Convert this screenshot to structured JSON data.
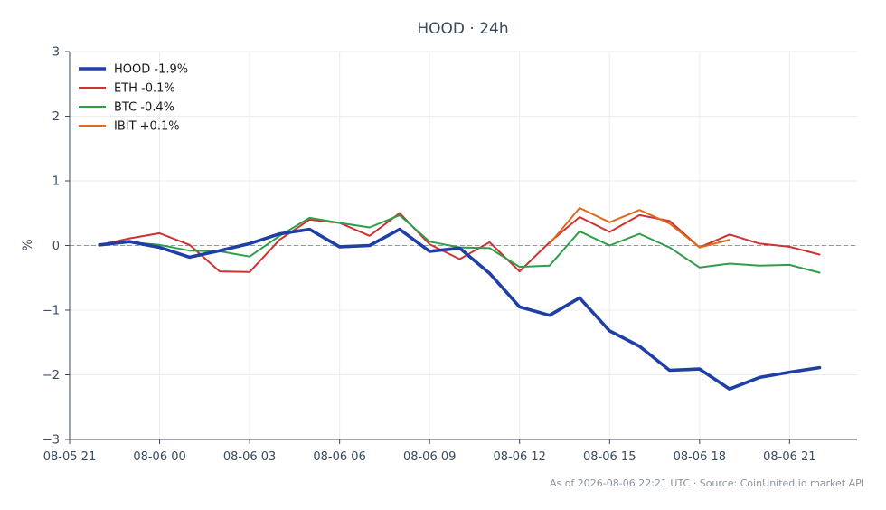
{
  "chart_data": {
    "type": "line",
    "title": "HOOD · 24h",
    "ylabel": "%",
    "xlabel": "",
    "ylim": [
      -3,
      3
    ],
    "yticks": [
      -3,
      -2,
      -1,
      0,
      1,
      2,
      3
    ],
    "ytick_labels": [
      "−3",
      "−2",
      "−1",
      "0",
      "1",
      "2",
      "3"
    ],
    "xlim": [
      "2026-08-05 21:00",
      "2026-08-06 23:15"
    ],
    "xticks": [
      "2026-08-05 21:00",
      "2026-08-06 00:00",
      "2026-08-06 03:00",
      "2026-08-06 06:00",
      "2026-08-06 09:00",
      "2026-08-06 12:00",
      "2026-08-06 15:00",
      "2026-08-06 18:00",
      "2026-08-06 21:00"
    ],
    "xtick_labels": [
      "08-05 21",
      "08-06 00",
      "08-06 03",
      "08-06 06",
      "08-06 09",
      "08-06 12",
      "08-06 15",
      "08-06 18",
      "08-06 21"
    ],
    "zero_line": true,
    "grid": true,
    "legend": "top-left",
    "series": [
      {
        "name": "HOOD -1.9%",
        "color": "#1f3fa6",
        "emphasis": true,
        "x": [
          "2026-08-05 22:00",
          "2026-08-05 23:00",
          "2026-08-06 00:00",
          "2026-08-06 01:00",
          "2026-08-06 02:00",
          "2026-08-06 03:00",
          "2026-08-06 04:00",
          "2026-08-06 05:00",
          "2026-08-06 06:00",
          "2026-08-06 07:00",
          "2026-08-06 08:00",
          "2026-08-06 09:00",
          "2026-08-06 10:00",
          "2026-08-06 11:00",
          "2026-08-06 12:00",
          "2026-08-06 13:00",
          "2026-08-06 14:00",
          "2026-08-06 15:00",
          "2026-08-06 16:00",
          "2026-08-06 17:00",
          "2026-08-06 18:00",
          "2026-08-06 19:00",
          "2026-08-06 20:00",
          "2026-08-06 21:00",
          "2026-08-06 22:00"
        ],
        "values": [
          0.01,
          0.06,
          -0.03,
          -0.18,
          -0.08,
          0.03,
          0.18,
          0.25,
          -0.02,
          0.0,
          0.25,
          -0.09,
          -0.04,
          -0.43,
          -0.95,
          -1.08,
          -0.81,
          -1.32,
          -1.56,
          -1.93,
          -1.91,
          -2.22,
          -2.04,
          -1.96,
          -1.89
        ]
      },
      {
        "name": "ETH -0.1%",
        "color": "#cc3333",
        "emphasis": false,
        "x": [
          "2026-08-05 22:00",
          "2026-08-05 23:00",
          "2026-08-06 00:00",
          "2026-08-06 01:00",
          "2026-08-06 02:00",
          "2026-08-06 03:00",
          "2026-08-06 04:00",
          "2026-08-06 05:00",
          "2026-08-06 06:00",
          "2026-08-06 07:00",
          "2026-08-06 08:00",
          "2026-08-06 09:00",
          "2026-08-06 10:00",
          "2026-08-06 11:00",
          "2026-08-06 12:00",
          "2026-08-06 13:00",
          "2026-08-06 14:00",
          "2026-08-06 15:00",
          "2026-08-06 16:00",
          "2026-08-06 17:00",
          "2026-08-06 18:00",
          "2026-08-06 19:00",
          "2026-08-06 20:00",
          "2026-08-06 21:00",
          "2026-08-06 22:00"
        ],
        "values": [
          0.01,
          0.11,
          0.19,
          0.01,
          -0.4,
          -0.41,
          0.09,
          0.4,
          0.35,
          0.15,
          0.5,
          0.02,
          -0.21,
          0.05,
          -0.4,
          0.05,
          0.44,
          0.21,
          0.47,
          0.38,
          -0.03,
          0.17,
          0.03,
          -0.02,
          -0.14
        ]
      },
      {
        "name": "BTC -0.4%",
        "color": "#2e9e4a",
        "emphasis": false,
        "x": [
          "2026-08-05 22:00",
          "2026-08-05 23:00",
          "2026-08-06 00:00",
          "2026-08-06 01:00",
          "2026-08-06 02:00",
          "2026-08-06 03:00",
          "2026-08-06 04:00",
          "2026-08-06 05:00",
          "2026-08-06 06:00",
          "2026-08-06 07:00",
          "2026-08-06 08:00",
          "2026-08-06 09:00",
          "2026-08-06 10:00",
          "2026-08-06 11:00",
          "2026-08-06 12:00",
          "2026-08-06 13:00",
          "2026-08-06 14:00",
          "2026-08-06 15:00",
          "2026-08-06 16:00",
          "2026-08-06 17:00",
          "2026-08-06 18:00",
          "2026-08-06 19:00",
          "2026-08-06 20:00",
          "2026-08-06 21:00",
          "2026-08-06 22:00"
        ],
        "values": [
          0.0,
          0.05,
          0.01,
          -0.08,
          -0.09,
          -0.17,
          0.15,
          0.43,
          0.35,
          0.28,
          0.47,
          0.06,
          -0.03,
          -0.04,
          -0.33,
          -0.31,
          0.22,
          0.0,
          0.18,
          -0.03,
          -0.34,
          -0.28,
          -0.31,
          -0.3,
          -0.42
        ]
      },
      {
        "name": "IBIT +0.1%",
        "color": "#e06a1b",
        "emphasis": false,
        "x": [
          "2026-08-06 13:00",
          "2026-08-06 14:00",
          "2026-08-06 15:00",
          "2026-08-06 16:00",
          "2026-08-06 17:00",
          "2026-08-06 18:00",
          "2026-08-06 19:00"
        ],
        "values": [
          0.03,
          0.58,
          0.36,
          0.55,
          0.34,
          -0.03,
          0.09
        ]
      }
    ],
    "footnote": "As of 2026-08-06 22:21 UTC · Source: CoinUnited.io market API"
  }
}
